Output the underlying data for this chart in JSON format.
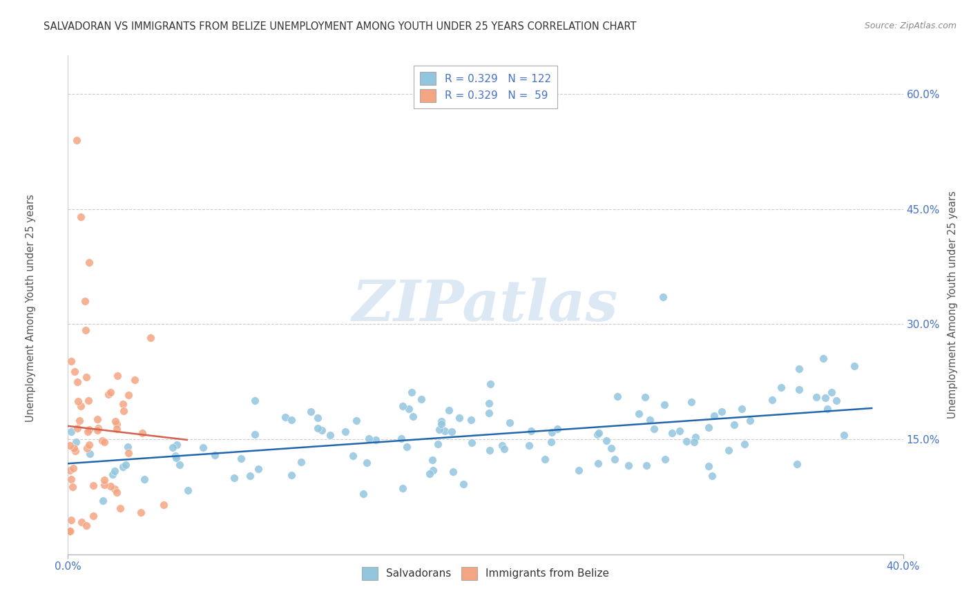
{
  "title": "SALVADORAN VS IMMIGRANTS FROM BELIZE UNEMPLOYMENT AMONG YOUTH UNDER 25 YEARS CORRELATION CHART",
  "source": "Source: ZipAtlas.com",
  "ylabel": "Unemployment Among Youth under 25 years",
  "ytick_labels": [
    "15.0%",
    "30.0%",
    "45.0%",
    "60.0%"
  ],
  "ytick_values": [
    0.15,
    0.3,
    0.45,
    0.6
  ],
  "xlim": [
    0.0,
    0.4
  ],
  "ylim": [
    0.0,
    0.65
  ],
  "legend_corr": [
    {
      "label": "R = 0.329   N = 122",
      "color": "#92c5de"
    },
    {
      "label": "R = 0.329   N =  59",
      "color": "#f4a582"
    }
  ],
  "sal_color": "#92c5de",
  "sal_line_color": "#2166ac",
  "bel_color": "#f4a582",
  "bel_line_color": "#d6604d",
  "background_color": "#ffffff",
  "watermark_text": "ZIPatlas",
  "watermark_color": "#dce9f5",
  "title_fontsize": 10.5,
  "tick_color": "#4472c4",
  "source_color": "#888888",
  "ylabel_color": "#555555"
}
